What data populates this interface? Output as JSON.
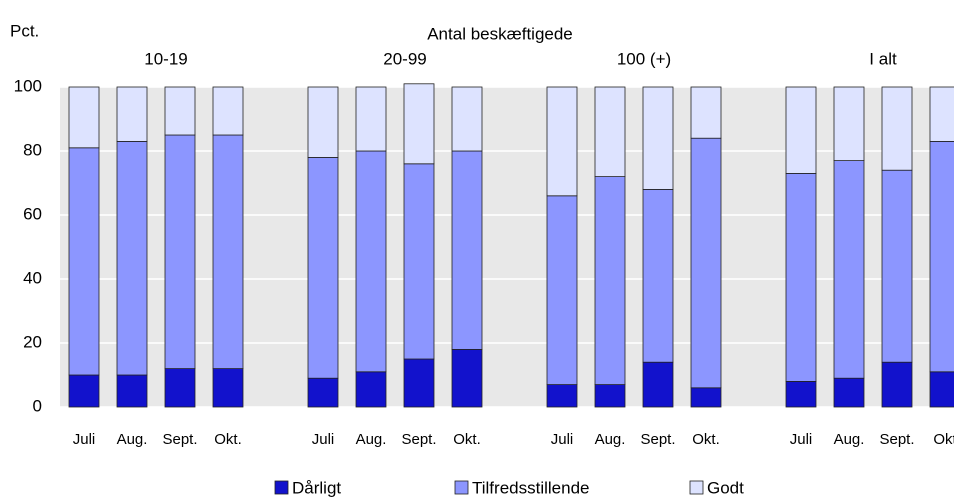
{
  "chart_data": {
    "type": "bar",
    "stacked": true,
    "title": "Antal beskæftigede",
    "y_label": "Pct.",
    "groups": [
      "10-19",
      "20-99",
      "100 (+)",
      "I alt"
    ],
    "categories": [
      "Juli",
      "Aug.",
      "Sept.",
      "Okt.",
      "Juli",
      "Aug.",
      "Sept.",
      "Okt.",
      "Juli",
      "Aug.",
      "Sept.",
      "Okt.",
      "Juli",
      "Aug.",
      "Sept.",
      "Okt"
    ],
    "series": [
      {
        "name": "Dårligt",
        "color": "#1212cc",
        "values": [
          10,
          10,
          12,
          12,
          9,
          11,
          15,
          18,
          7,
          7,
          14,
          6,
          8,
          9,
          14,
          11
        ]
      },
      {
        "name": "Tilfredsstillende",
        "color": "#8c96ff",
        "values": [
          71,
          73,
          73,
          73,
          69,
          69,
          61,
          62,
          59,
          65,
          54,
          78,
          65,
          68,
          60,
          72
        ]
      },
      {
        "name": "Godt",
        "color": "#dde3ff",
        "values": [
          19,
          17,
          15,
          15,
          22,
          20,
          25,
          20,
          34,
          28,
          32,
          16,
          27,
          23,
          26,
          17
        ]
      }
    ],
    "ylim": [
      0,
      100
    ],
    "yticks": [
      0,
      20,
      40,
      60,
      80,
      100
    ],
    "grid": true
  }
}
